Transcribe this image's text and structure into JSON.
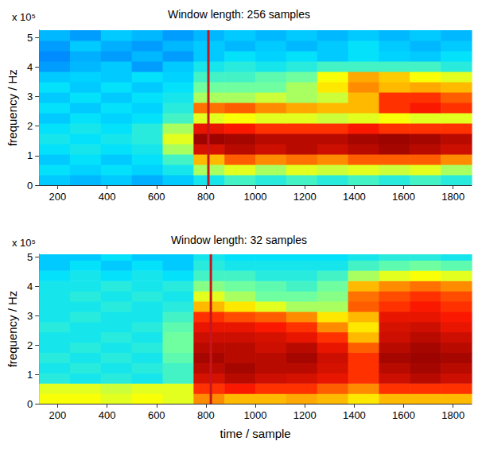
{
  "chart_data": [
    {
      "type": "heatmap",
      "title": "Window length: 256 samples",
      "ylabel": "frequency / Hz",
      "annotation": "x 10⁵",
      "x": [
        187.5,
        312.5,
        437.5,
        562.5,
        687.5,
        812.5,
        937.5,
        1062.5,
        1187.5,
        1312.5,
        1437.5,
        1562.5,
        1687.5,
        1812.5
      ],
      "y": [
        0.175,
        0.525,
        0.875,
        1.225,
        1.575,
        1.925,
        2.275,
        2.625,
        2.975,
        3.325,
        3.675,
        4.025,
        4.375,
        4.725,
        5.075
      ],
      "cells": [
        [
          0.35,
          0.33,
          0.35,
          0.32,
          0.35,
          0.4,
          0.45,
          0.42,
          0.45,
          0.42,
          0.45,
          0.42,
          0.45,
          0.42
        ],
        [
          0.38,
          0.36,
          0.38,
          0.36,
          0.4,
          0.55,
          0.6,
          0.55,
          0.6,
          0.58,
          0.6,
          0.58,
          0.6,
          0.55
        ],
        [
          0.35,
          0.38,
          0.35,
          0.38,
          0.45,
          0.7,
          0.8,
          0.75,
          0.78,
          0.75,
          0.8,
          0.8,
          0.8,
          0.75
        ],
        [
          0.38,
          0.4,
          0.38,
          0.4,
          0.55,
          0.92,
          0.95,
          0.93,
          0.95,
          0.93,
          0.95,
          0.97,
          0.95,
          0.93
        ],
        [
          0.4,
          0.38,
          0.4,
          0.42,
          0.6,
          0.98,
          0.97,
          0.95,
          0.95,
          0.95,
          0.97,
          0.98,
          0.97,
          0.95
        ],
        [
          0.38,
          0.4,
          0.38,
          0.42,
          0.55,
          0.9,
          0.88,
          0.85,
          0.85,
          0.85,
          0.88,
          0.85,
          0.85,
          0.85
        ],
        [
          0.35,
          0.38,
          0.36,
          0.38,
          0.45,
          0.6,
          0.62,
          0.6,
          0.6,
          0.58,
          0.6,
          0.62,
          0.6,
          0.6
        ],
        [
          0.38,
          0.35,
          0.38,
          0.36,
          0.42,
          0.78,
          0.8,
          0.75,
          0.72,
          0.7,
          0.7,
          0.85,
          0.88,
          0.85
        ],
        [
          0.35,
          0.38,
          0.35,
          0.38,
          0.4,
          0.55,
          0.55,
          0.58,
          0.55,
          0.58,
          0.7,
          0.85,
          0.85,
          0.8
        ],
        [
          0.38,
          0.35,
          0.38,
          0.35,
          0.38,
          0.5,
          0.5,
          0.5,
          0.55,
          0.65,
          0.75,
          0.7,
          0.72,
          0.7
        ],
        [
          0.35,
          0.36,
          0.35,
          0.38,
          0.36,
          0.45,
          0.45,
          0.48,
          0.5,
          0.62,
          0.72,
          0.68,
          0.62,
          0.6
        ],
        [
          0.3,
          0.33,
          0.35,
          0.3,
          0.35,
          0.4,
          0.42,
          0.4,
          0.42,
          0.45,
          0.45,
          0.45,
          0.45,
          0.42
        ],
        [
          0.28,
          0.32,
          0.3,
          0.33,
          0.3,
          0.35,
          0.38,
          0.36,
          0.38,
          0.35,
          0.38,
          0.36,
          0.35,
          0.38
        ],
        [
          0.3,
          0.35,
          0.32,
          0.3,
          0.33,
          0.35,
          0.33,
          0.35,
          0.33,
          0.35,
          0.38,
          0.35,
          0.33,
          0.35
        ],
        [
          0.33,
          0.3,
          0.35,
          0.33,
          0.3,
          0.33,
          0.35,
          0.33,
          0.35,
          0.33,
          0.35,
          0.33,
          0.35,
          0.33
        ]
      ],
      "zlim": [
        0,
        1
      ],
      "xlim": [
        125,
        1875
      ],
      "xticks": [
        200,
        400,
        600,
        800,
        1000,
        1200,
        1400,
        1600,
        1800
      ],
      "ylim": [
        0,
        5.25
      ],
      "yticks": [
        0,
        1,
        2,
        3,
        4,
        5
      ],
      "vline": {
        "value": 810,
        "color": "#c8141e"
      }
    },
    {
      "type": "heatmap",
      "title": "Window length: 32 samples",
      "ylabel": "frequency / Hz",
      "xlabel": "time / sample",
      "annotation": "x 10⁵",
      "x": [
        187.5,
        312.5,
        437.5,
        562.5,
        687.5,
        812.5,
        937.5,
        1062.5,
        1187.5,
        1312.5,
        1437.5,
        1562.5,
        1687.5,
        1812.5
      ],
      "y": [
        0.175,
        0.525,
        0.875,
        1.225,
        1.575,
        1.925,
        2.275,
        2.625,
        2.975,
        3.325,
        3.675,
        4.025,
        4.375,
        4.725,
        5.075
      ],
      "cells": [
        [
          0.62,
          0.62,
          0.6,
          0.62,
          0.6,
          0.75,
          0.7,
          0.7,
          0.72,
          0.7,
          0.65,
          0.7,
          0.7,
          0.7
        ],
        [
          0.6,
          0.6,
          0.58,
          0.6,
          0.6,
          0.85,
          0.88,
          0.85,
          0.85,
          0.8,
          0.75,
          0.85,
          0.85,
          0.85
        ],
        [
          0.42,
          0.4,
          0.42,
          0.4,
          0.45,
          0.92,
          0.95,
          0.93,
          0.92,
          0.9,
          0.85,
          0.93,
          0.95,
          0.93
        ],
        [
          0.4,
          0.42,
          0.4,
          0.42,
          0.45,
          0.95,
          0.97,
          0.95,
          0.95,
          0.92,
          0.85,
          0.95,
          0.97,
          0.95
        ],
        [
          0.42,
          0.4,
          0.42,
          0.4,
          0.48,
          0.97,
          0.95,
          0.95,
          0.97,
          0.93,
          0.85,
          0.97,
          0.98,
          0.97
        ],
        [
          0.4,
          0.42,
          0.4,
          0.42,
          0.5,
          0.95,
          0.95,
          0.93,
          0.95,
          0.9,
          0.8,
          0.95,
          0.97,
          0.95
        ],
        [
          0.4,
          0.4,
          0.42,
          0.4,
          0.5,
          0.93,
          0.93,
          0.92,
          0.9,
          0.85,
          0.7,
          0.93,
          0.95,
          0.93
        ],
        [
          0.42,
          0.4,
          0.4,
          0.42,
          0.48,
          0.9,
          0.9,
          0.88,
          0.85,
          0.75,
          0.65,
          0.92,
          0.93,
          0.9
        ],
        [
          0.4,
          0.42,
          0.4,
          0.4,
          0.45,
          0.85,
          0.82,
          0.8,
          0.75,
          0.65,
          0.7,
          0.9,
          0.9,
          0.88
        ],
        [
          0.4,
          0.4,
          0.42,
          0.4,
          0.42,
          0.7,
          0.65,
          0.6,
          0.55,
          0.55,
          0.8,
          0.85,
          0.88,
          0.85
        ],
        [
          0.4,
          0.42,
          0.4,
          0.42,
          0.4,
          0.6,
          0.55,
          0.5,
          0.5,
          0.52,
          0.78,
          0.82,
          0.85,
          0.82
        ],
        [
          0.4,
          0.4,
          0.42,
          0.4,
          0.42,
          0.52,
          0.5,
          0.48,
          0.45,
          0.5,
          0.7,
          0.75,
          0.78,
          0.75
        ],
        [
          0.38,
          0.4,
          0.38,
          0.4,
          0.38,
          0.45,
          0.45,
          0.42,
          0.42,
          0.45,
          0.55,
          0.6,
          0.62,
          0.6
        ],
        [
          0.35,
          0.38,
          0.35,
          0.38,
          0.35,
          0.42,
          0.4,
          0.4,
          0.4,
          0.4,
          0.45,
          0.48,
          0.5,
          0.48
        ],
        [
          0.35,
          0.35,
          0.38,
          0.35,
          0.35,
          0.4,
          0.38,
          0.38,
          0.38,
          0.38,
          0.4,
          0.42,
          0.42,
          0.4
        ]
      ],
      "zlim": [
        0,
        1
      ],
      "xlim": [
        125,
        1875
      ],
      "xticks": [
        200,
        400,
        600,
        800,
        1000,
        1200,
        1400,
        1600,
        1800
      ],
      "ylim": [
        0,
        5.1
      ],
      "yticks": [
        0,
        1,
        2,
        3,
        4,
        5
      ],
      "vline": {
        "value": 820,
        "color": "#c8141e"
      }
    }
  ]
}
